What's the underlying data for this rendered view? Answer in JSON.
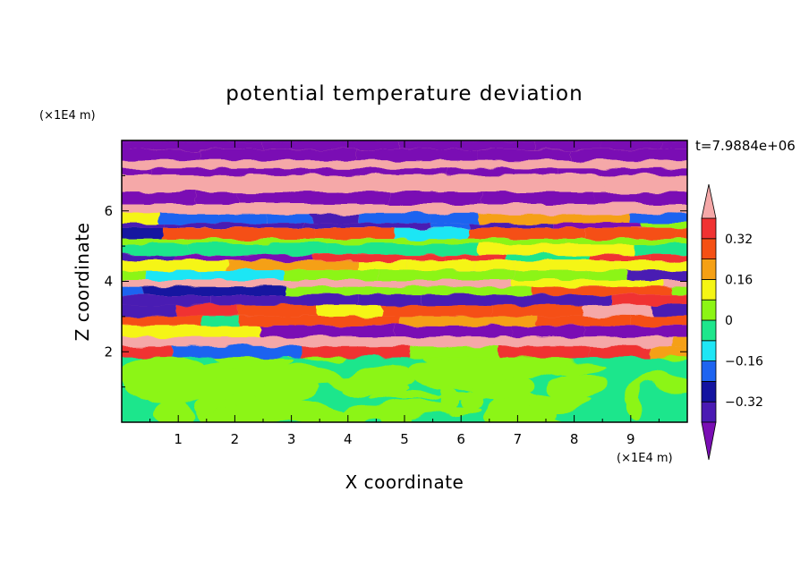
{
  "chart_data": {
    "type": "heatmap",
    "title": "potential temperature deviation",
    "xlabel": "X coordinate",
    "ylabel": "Z coordinate",
    "x_unit": "(×1E4 m)",
    "y_unit": "(×1E4 m)",
    "time_label": "t=7.9884e+06",
    "xlim": [
      0,
      10
    ],
    "ylim": [
      0,
      8
    ],
    "x_ticks": [
      "1",
      "2",
      "3",
      "4",
      "5",
      "6",
      "7",
      "8",
      "9"
    ],
    "y_ticks": [
      "2",
      "4",
      "6"
    ],
    "colorbar": {
      "levels": [
        -0.4,
        -0.32,
        -0.24,
        -0.16,
        -0.08,
        0,
        0.08,
        0.16,
        0.24,
        0.32,
        0.4
      ],
      "tick_labels": [
        "0.32",
        "0.16",
        "0",
        "−0.16",
        "−0.32"
      ],
      "tick_values": [
        0.32,
        0.16,
        0,
        -0.16,
        -0.32
      ],
      "extend": "both",
      "colors": [
        "#7a0eb4",
        "#4a1ab3",
        "#1414a0",
        "#1e64f0",
        "#1ee6f5",
        "#1ee68c",
        "#8cf514",
        "#f5f514",
        "#f5a014",
        "#f55014",
        "#f03232",
        "#f5a8a8"
      ]
    },
    "lower_region": {
      "z_range": [
        0,
        2
      ],
      "description_colors": [
        "#1ee68c",
        "#8cf514"
      ]
    },
    "upper_region": {
      "z_range": [
        2,
        8
      ]
    }
  }
}
